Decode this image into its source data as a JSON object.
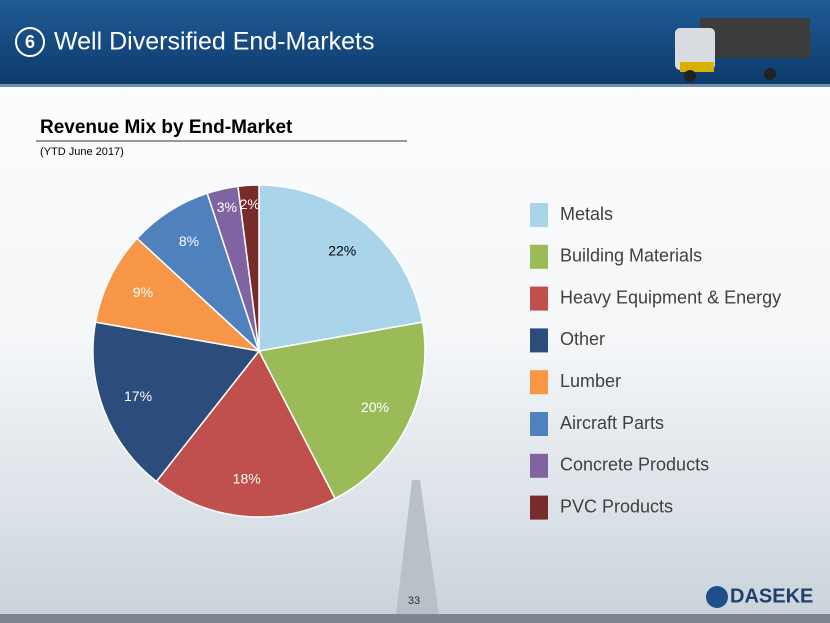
{
  "header": {
    "number": "6",
    "title": "Well Diversified End-Markets"
  },
  "chart_data": {
    "type": "pie",
    "title": "Revenue Mix by End-Market",
    "subtitle": "(YTD June 2017)",
    "categories": [
      "Metals",
      "Building Materials",
      "Heavy Equipment & Energy",
      "Other",
      "Lumber",
      "Aircraft Parts",
      "Concrete Products",
      "PVC Products"
    ],
    "values": [
      22,
      20,
      18,
      17,
      9,
      8,
      3,
      2
    ],
    "value_labels": [
      "22%",
      "20%",
      "18%",
      "17%",
      "9%",
      "8%",
      "3%",
      "2%"
    ],
    "colors": [
      "#a9d4ea",
      "#9bbb59",
      "#c0504d",
      "#2c4d7c",
      "#f79646",
      "#4f81bd",
      "#8064a2",
      "#772c2a"
    ],
    "legend": "right"
  },
  "page_number": "33",
  "logo": "DASEKE"
}
